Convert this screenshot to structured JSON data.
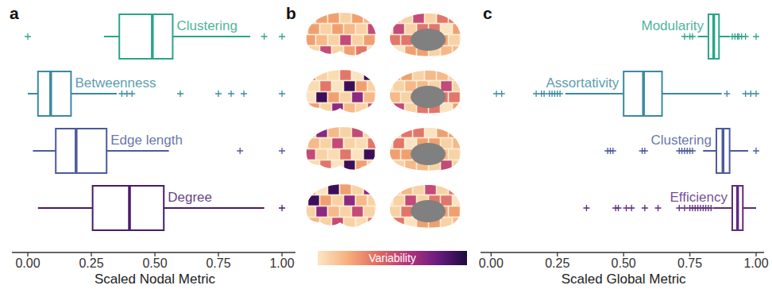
{
  "chart_data": [
    {
      "type": "boxplot",
      "orientation": "horizontal",
      "title": "a",
      "x_label": "Scaled Nodal Metric",
      "xlim": [
        -0.0625,
        1.053
      ],
      "xticks": [
        {
          "value": 0,
          "label": "0.00"
        },
        {
          "value": 0.25,
          "label": "0.25"
        },
        {
          "value": 0.5,
          "label": "0.50"
        },
        {
          "value": 0.75,
          "label": "0.75"
        },
        {
          "value": 1,
          "label": "1.00"
        }
      ],
      "series": [
        {
          "name": "Clustering",
          "color": "#2aa58b",
          "whisker_low": 0.3,
          "q1": 0.36,
          "median": 0.49,
          "q3": 0.57,
          "whisker_high": 0.875,
          "outliers": [
            0.0,
            0.93,
            1.0
          ]
        },
        {
          "name": "Betweenness",
          "color": "#3b8a9f",
          "whisker_low": 0.0,
          "q1": 0.04,
          "median": 0.09,
          "q3": 0.17,
          "whisker_high": 0.35,
          "outliers": [
            0.37,
            0.39,
            0.41,
            0.6,
            0.75,
            0.8,
            0.85,
            1.0
          ]
        },
        {
          "name": "Edge length",
          "color": "#4d5b9b",
          "whisker_low": 0.02,
          "q1": 0.11,
          "median": 0.19,
          "q3": 0.31,
          "whisker_high": 0.555,
          "outliers": [
            0.835,
            1.0
          ]
        },
        {
          "name": "Degree",
          "color": "#4a1a6b",
          "whisker_low": 0.04,
          "q1": 0.255,
          "median": 0.4,
          "q3": 0.535,
          "whisker_high": 0.93,
          "outliers": [
            1.0
          ]
        }
      ]
    },
    {
      "type": "brain_map",
      "title": "b",
      "colorbar_label": "Variability"
    },
    {
      "type": "boxplot",
      "orientation": "horizontal",
      "title": "c",
      "x_label": "Scaled Global Metric",
      "xlim": [
        -0.04,
        1.03
      ],
      "xticks": [
        {
          "value": 0,
          "label": "0.00"
        },
        {
          "value": 0.25,
          "label": "0.25"
        },
        {
          "value": 0.5,
          "label": "0.50"
        },
        {
          "value": 0.75,
          "label": "0.75"
        },
        {
          "value": 1,
          "label": "1.00"
        }
      ],
      "series": [
        {
          "name": "Modularity",
          "color": "#2aa58b",
          "whisker_low": 0.78,
          "q1": 0.82,
          "median": 0.84,
          "q3": 0.86,
          "whisker_high": 0.9,
          "outliers": [
            0.73,
            0.75,
            0.76,
            0.91,
            0.92,
            0.93,
            0.935,
            0.945,
            0.96,
            1.0
          ]
        },
        {
          "name": "Assortativity",
          "color": "#3b8a9f",
          "whisker_low": 0.28,
          "q1": 0.5,
          "median": 0.575,
          "q3": 0.645,
          "whisker_high": 0.87,
          "outliers": [
            0.02,
            0.04,
            0.17,
            0.19,
            0.2,
            0.22,
            0.23,
            0.24,
            0.25,
            0.26,
            0.89,
            0.96,
            0.98,
            1.0
          ]
        },
        {
          "name": "Clustering",
          "color": "#4d5b9b",
          "whisker_low": 0.8,
          "q1": 0.85,
          "median": 0.875,
          "q3": 0.9,
          "whisker_high": 0.97,
          "outliers": [
            0.44,
            0.45,
            0.46,
            0.57,
            0.58,
            0.71,
            0.72,
            0.73,
            0.74,
            0.75,
            0.76,
            1.0
          ]
        },
        {
          "name": "Efficiency",
          "color": "#5e2a7e",
          "whisker_low": 0.84,
          "q1": 0.91,
          "median": 0.93,
          "q3": 0.95,
          "whisker_high": 1.0,
          "outliers": [
            0.36,
            0.47,
            0.48,
            0.51,
            0.53,
            0.58,
            0.63,
            0.71,
            0.73,
            0.75,
            0.76,
            0.77,
            0.78,
            0.79,
            0.8,
            0.81,
            0.82,
            0.83
          ]
        }
      ]
    }
  ]
}
